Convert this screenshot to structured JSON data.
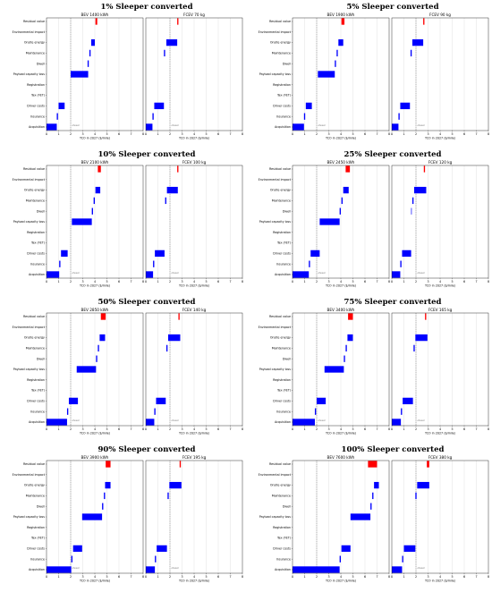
{
  "chart_data": [
    {
      "type": "bar",
      "group_title": "1% Sleeper converted",
      "categories": [
        "Residual value",
        "Environmental impact",
        "Onsite energy",
        "Maintenance",
        "Dwell",
        "Payload capacity loss",
        "Registration",
        "Tax (FET)",
        "Driver costs",
        "Insurance",
        "Acquisition"
      ],
      "xlabel": "TCO in 2027 ($/mile)",
      "xlim": [
        0,
        8
      ],
      "xticks": [
        0,
        1,
        2,
        3,
        4,
        5,
        6,
        7,
        8
      ],
      "diesel_label": "diesel",
      "panels": [
        {
          "subtitle": "BEV 1400 kWh",
          "diesel_x": 2.0,
          "bars": [
            [
              4.05,
              4.2
            ],
            null,
            [
              3.7,
              4.0
            ],
            [
              3.55,
              3.65
            ],
            [
              3.4,
              3.5
            ],
            [
              2.0,
              3.45
            ],
            null,
            null,
            [
              1.0,
              1.5
            ],
            [
              0.85,
              0.95
            ],
            [
              0.0,
              0.85
            ]
          ]
        },
        {
          "subtitle": "FCEV 70 kg",
          "diesel_x": 2.0,
          "bars": [
            [
              2.6,
              2.7
            ],
            null,
            [
              1.7,
              2.6
            ],
            [
              1.5,
              1.6
            ],
            null,
            null,
            null,
            null,
            [
              0.7,
              1.5
            ],
            [
              0.55,
              0.65
            ],
            [
              0.0,
              0.55
            ]
          ]
        }
      ]
    },
    {
      "type": "bar",
      "group_title": "5% Sleeper converted",
      "categories": [
        "Residual value",
        "Environmental impact",
        "Onsite energy",
        "Maintenance",
        "Dwell",
        "Payload capacity loss",
        "Registration",
        "Tax (FET)",
        "Driver costs",
        "Insurance",
        "Acquisition"
      ],
      "xlabel": "TCO in 2027 ($/mile)",
      "xlim": [
        0,
        8
      ],
      "xticks": [
        0,
        1,
        2,
        3,
        4,
        5,
        6,
        7,
        8
      ],
      "diesel_label": "diesel",
      "panels": [
        {
          "subtitle": "BEV 1900 kWh",
          "diesel_x": 2.0,
          "bars": [
            [
              4.05,
              4.3
            ],
            null,
            [
              3.8,
              4.2
            ],
            [
              3.65,
              3.75
            ],
            [
              3.5,
              3.6
            ],
            [
              2.1,
              3.5
            ],
            null,
            null,
            [
              1.1,
              1.6
            ],
            [
              0.95,
              1.05
            ],
            [
              0.0,
              0.95
            ]
          ]
        },
        {
          "subtitle": "FCEV 90 kg",
          "diesel_x": 2.0,
          "bars": [
            [
              2.6,
              2.7
            ],
            null,
            [
              1.7,
              2.6
            ],
            [
              1.55,
              1.65
            ],
            null,
            null,
            null,
            null,
            [
              0.7,
              1.5
            ],
            [
              0.55,
              0.65
            ],
            [
              0.0,
              0.55
            ]
          ]
        }
      ]
    },
    {
      "type": "bar",
      "group_title": "10% Sleeper converted",
      "categories": [
        "Residual value",
        "Environmental impact",
        "Onsite energy",
        "Maintenance",
        "Dwell",
        "Payload capacity loss",
        "Registration",
        "Tax (FET)",
        "Driver costs",
        "Insurance",
        "Acquisition"
      ],
      "xlabel": "TCO in 2027 ($/mile)",
      "xlim": [
        0,
        8
      ],
      "xticks": [
        0,
        1,
        2,
        3,
        4,
        5,
        6,
        7,
        8
      ],
      "diesel_label": "diesel",
      "panels": [
        {
          "subtitle": "BEV 2100 kWh",
          "diesel_x": 2.0,
          "bars": [
            [
              4.25,
              4.5
            ],
            null,
            [
              4.05,
              4.45
            ],
            [
              3.9,
              4.0
            ],
            [
              3.75,
              3.85
            ],
            [
              2.1,
              3.75
            ],
            null,
            null,
            [
              1.2,
              1.75
            ],
            [
              1.05,
              1.15
            ],
            [
              0.0,
              1.05
            ]
          ]
        },
        {
          "subtitle": "FCEV 100 kg",
          "diesel_x": 2.0,
          "bars": [
            [
              2.6,
              2.7
            ],
            null,
            [
              1.75,
              2.65
            ],
            [
              1.6,
              1.7
            ],
            null,
            null,
            null,
            null,
            [
              0.75,
              1.55
            ],
            [
              0.6,
              0.7
            ],
            [
              0.0,
              0.6
            ]
          ]
        }
      ]
    },
    {
      "type": "bar",
      "group_title": "25% Sleeper converted",
      "categories": [
        "Residual value",
        "Environmental impact",
        "Onsite energy",
        "Maintenance",
        "Dwell",
        "Payload capacity loss",
        "Registration",
        "Tax (FET)",
        "Driver costs",
        "Insurance",
        "Acquisition"
      ],
      "xlabel": "TCO in 2027 ($/mile)",
      "xlim": [
        0,
        8
      ],
      "xticks": [
        0,
        1,
        2,
        3,
        4,
        5,
        6,
        7,
        8
      ],
      "diesel_label": "diesel",
      "panels": [
        {
          "subtitle": "BEV 2450 kWh",
          "diesel_x": 2.0,
          "bars": [
            [
              4.4,
              4.75
            ],
            null,
            [
              4.2,
              4.65
            ],
            [
              4.05,
              4.15
            ],
            [
              3.9,
              4.0
            ],
            [
              2.25,
              3.9
            ],
            null,
            null,
            [
              1.5,
              2.25
            ],
            [
              1.35,
              1.45
            ],
            [
              0.0,
              1.35
            ]
          ]
        },
        {
          "subtitle": "FCEV 120 kg",
          "diesel_x": 2.0,
          "bars": [
            [
              2.65,
              2.75
            ],
            null,
            [
              1.85,
              2.85
            ],
            [
              1.7,
              1.8
            ],
            [
              1.6,
              1.65
            ],
            null,
            null,
            null,
            [
              0.85,
              1.6
            ],
            [
              0.7,
              0.8
            ],
            [
              0.0,
              0.7
            ]
          ]
        }
      ]
    },
    {
      "type": "bar",
      "group_title": "50% Sleeper converted",
      "categories": [
        "Residual value",
        "Environmental impact",
        "Onsite energy",
        "Maintenance",
        "Dwell",
        "Payload capacity loss",
        "Registration",
        "Tax (FET)",
        "Driver costs",
        "Insurance",
        "Acquisition"
      ],
      "xlabel": "TCO in 2027 ($/mile)",
      "xlim": [
        0,
        8
      ],
      "xticks": [
        0,
        1,
        2,
        3,
        4,
        5,
        6,
        7,
        8
      ],
      "diesel_label": "diesel",
      "panels": [
        {
          "subtitle": "BEV 2850 kWh",
          "diesel_x": 2.0,
          "bars": [
            [
              4.5,
              4.9
            ],
            null,
            [
              4.4,
              4.85
            ],
            [
              4.25,
              4.35
            ],
            [
              4.1,
              4.2
            ],
            [
              2.5,
              4.1
            ],
            null,
            null,
            [
              1.85,
              2.6
            ],
            [
              1.7,
              1.8
            ],
            [
              0.0,
              1.7
            ]
          ]
        },
        {
          "subtitle": "FCEV 140 kg",
          "diesel_x": 2.0,
          "bars": [
            [
              2.7,
              2.8
            ],
            null,
            [
              1.85,
              2.85
            ],
            [
              1.7,
              1.8
            ],
            null,
            null,
            null,
            null,
            [
              0.85,
              1.65
            ],
            [
              0.7,
              0.8
            ],
            [
              0.0,
              0.7
            ]
          ]
        }
      ]
    },
    {
      "type": "bar",
      "group_title": "75% Sleeper converted",
      "categories": [
        "Residual value",
        "Environmental impact",
        "Onsite energy",
        "Maintenance",
        "Dwell",
        "Payload capacity loss",
        "Registration",
        "Tax (FET)",
        "Driver costs",
        "Insurance",
        "Acquisition"
      ],
      "xlabel": "TCO in 2027 ($/mile)",
      "xlim": [
        0,
        8
      ],
      "xticks": [
        0,
        1,
        2,
        3,
        4,
        5,
        6,
        7,
        8
      ],
      "diesel_label": "diesel",
      "panels": [
        {
          "subtitle": "BEV 3400 kWh",
          "diesel_x": 2.0,
          "bars": [
            [
              4.6,
              5.0
            ],
            null,
            [
              4.55,
              5.0
            ],
            [
              4.4,
              4.5
            ],
            [
              4.25,
              4.35
            ],
            [
              2.65,
              4.25
            ],
            null,
            null,
            [
              2.0,
              2.75
            ],
            [
              1.85,
              1.95
            ],
            [
              0.0,
              1.85
            ]
          ]
        },
        {
          "subtitle": "FCEV 165 kg",
          "diesel_x": 2.0,
          "bars": [
            [
              2.75,
              2.85
            ],
            null,
            [
              1.95,
              2.95
            ],
            [
              1.8,
              1.9
            ],
            null,
            null,
            null,
            null,
            [
              0.9,
              1.75
            ],
            [
              0.75,
              0.85
            ],
            [
              0.0,
              0.75
            ]
          ]
        }
      ]
    },
    {
      "type": "bar",
      "group_title": "90% Sleeper converted",
      "categories": [
        "Residual value",
        "Environmental impact",
        "Onsite energy",
        "Maintenance",
        "Dwell",
        "Payload capacity loss",
        "Registration",
        "Tax (FET)",
        "Driver costs",
        "Insurance",
        "Acquisition"
      ],
      "xlabel": "TCO in 2027 ($/mile)",
      "xlim": [
        0,
        8
      ],
      "xticks": [
        0,
        1,
        2,
        3,
        4,
        5,
        6,
        7,
        8
      ],
      "diesel_label": "diesel",
      "panels": [
        {
          "subtitle": "BEV 3900 kWh",
          "diesel_x": 2.0,
          "bars": [
            [
              4.9,
              5.3
            ],
            null,
            [
              4.85,
              5.3
            ],
            [
              4.75,
              4.85
            ],
            [
              4.6,
              4.7
            ],
            [
              2.95,
              4.6
            ],
            null,
            null,
            [
              2.2,
              2.95
            ],
            [
              2.05,
              2.15
            ],
            [
              0.0,
              2.05
            ]
          ]
        },
        {
          "subtitle": "FCEV 195 kg",
          "diesel_x": 2.0,
          "bars": [
            [
              2.8,
              2.9
            ],
            null,
            [
              1.95,
              2.95
            ],
            [
              1.8,
              1.9
            ],
            null,
            null,
            null,
            null,
            [
              0.9,
              1.75
            ],
            [
              0.75,
              0.85
            ],
            [
              0.0,
              0.75
            ]
          ]
        }
      ]
    },
    {
      "type": "bar",
      "group_title": "100% Sleeper converted",
      "categories": [
        "Residual value",
        "Environmental impact",
        "Onsite energy",
        "Maintenance",
        "Dwell",
        "Payload capacity loss",
        "Registration",
        "Tax (FET)",
        "Driver costs",
        "Insurance",
        "Acquisition"
      ],
      "xlabel": "TCO in 2027 ($/mile)",
      "xlim": [
        0,
        8
      ],
      "xticks": [
        0,
        1,
        2,
        3,
        4,
        5,
        6,
        7,
        8
      ],
      "diesel_label": "diesel",
      "panels": [
        {
          "subtitle": "BEV 7600 kWh",
          "diesel_x": 2.0,
          "bars": [
            [
              6.25,
              7.0
            ],
            null,
            [
              6.75,
              7.15
            ],
            [
              6.6,
              6.7
            ],
            [
              6.45,
              6.55
            ],
            [
              4.8,
              6.45
            ],
            null,
            null,
            [
              4.05,
              4.8
            ],
            [
              3.9,
              4.0
            ],
            [
              0.0,
              3.9
            ]
          ]
        },
        {
          "subtitle": "FCEV 380 kg",
          "diesel_x": 2.0,
          "bars": [
            [
              2.9,
              3.1
            ],
            null,
            [
              2.1,
              3.1
            ],
            [
              1.95,
              2.05
            ],
            null,
            null,
            null,
            null,
            [
              1.0,
              1.95
            ],
            [
              0.85,
              0.95
            ],
            [
              0.0,
              0.85
            ]
          ]
        }
      ]
    }
  ]
}
